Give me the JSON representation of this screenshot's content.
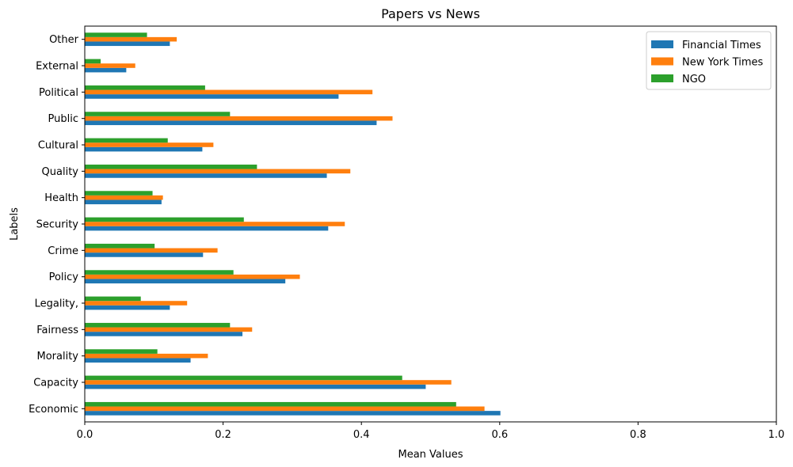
{
  "chart_data": {
    "type": "bar",
    "orientation": "horizontal",
    "title": "Papers vs News",
    "xlabel": "Mean Values",
    "ylabel": "Labels",
    "xlim": [
      0,
      1.0
    ],
    "x_ticks": [
      "0.0",
      "0.2",
      "0.4",
      "0.6",
      "0.8",
      "1.0"
    ],
    "x_tick_values": [
      0,
      0.2,
      0.4,
      0.6,
      0.8,
      1.0
    ],
    "grid": false,
    "legend_position": "top-right",
    "categories": [
      "Economic",
      "Capacity",
      "Morality",
      "Fairness",
      "Legality,",
      "Policy",
      "Crime",
      "Security",
      "Health",
      "Quality",
      "Cultural",
      "Public",
      "Political",
      "External",
      "Other"
    ],
    "series": [
      {
        "name": "Financial Times",
        "color": "#1f77b4",
        "values": [
          0.601,
          0.493,
          0.153,
          0.228,
          0.123,
          0.29,
          0.171,
          0.352,
          0.111,
          0.35,
          0.17,
          0.422,
          0.367,
          0.06,
          0.123
        ]
      },
      {
        "name": "New York Times",
        "color": "#ff7f0e",
        "values": [
          0.578,
          0.53,
          0.178,
          0.242,
          0.148,
          0.311,
          0.192,
          0.376,
          0.113,
          0.384,
          0.186,
          0.445,
          0.416,
          0.073,
          0.133
        ]
      },
      {
        "name": "NGO",
        "color": "#2ca02c",
        "values": [
          0.537,
          0.459,
          0.105,
          0.21,
          0.081,
          0.215,
          0.101,
          0.23,
          0.098,
          0.249,
          0.12,
          0.21,
          0.174,
          0.023,
          0.09
        ]
      }
    ]
  }
}
